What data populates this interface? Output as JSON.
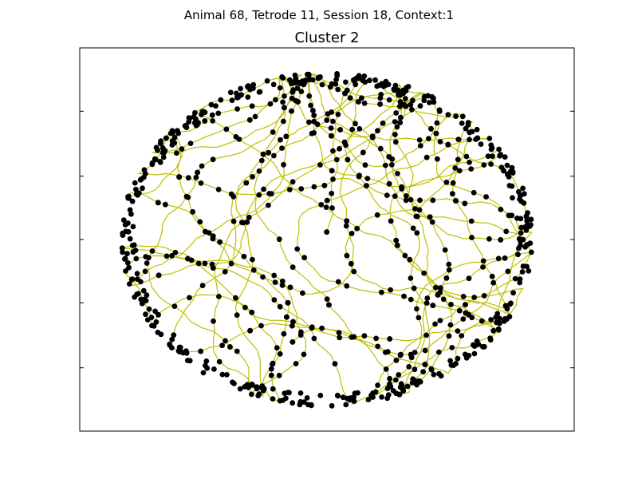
{
  "figure": {
    "suptitle": "Animal 68, Tetrode 11, Session 18, Context:1"
  },
  "chart_data": {
    "type": "scatter",
    "title": "Cluster 2",
    "xlabel": "",
    "ylabel": "",
    "tick_labels_visible": false,
    "grid": false,
    "legend": "none",
    "arena": {
      "shape": "ellipse",
      "cx": 0,
      "cy": 0,
      "rx": 1.0,
      "ry": 1.0
    },
    "xlim": [
      -1.2,
      1.2
    ],
    "ylim": [
      -1.15,
      1.15
    ],
    "y_ticks": [
      -0.77,
      -0.38,
      0.0,
      0.38,
      0.77
    ],
    "series": [
      {
        "role": "trajectory",
        "kind": "line",
        "color": "#bfbf00",
        "path_points": 1400,
        "seed": 68
      },
      {
        "role": "spikes",
        "kind": "points",
        "color": "#000000",
        "count": 900,
        "seed": 11
      }
    ]
  }
}
